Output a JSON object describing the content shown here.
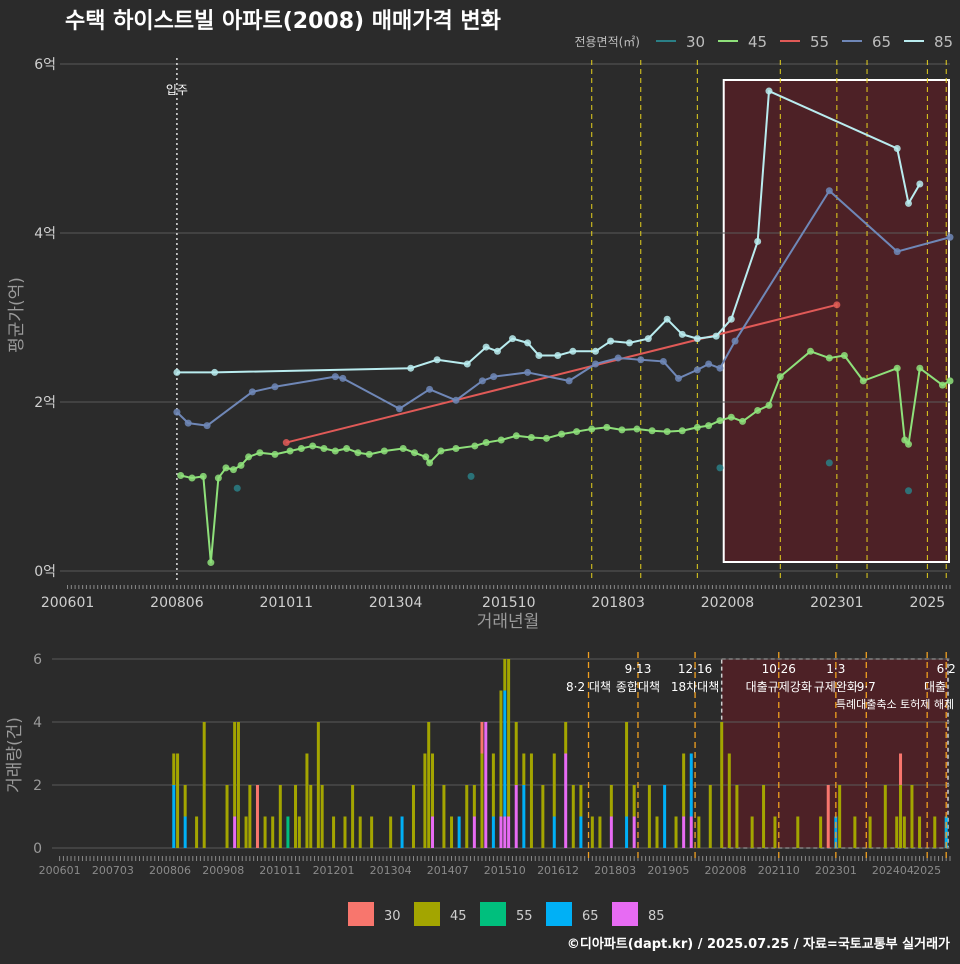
{
  "title": "수택 하이스트빌 아파트(2008) 매매가격 변화",
  "footer": "©디아파트(dapt.kr) / 2025.07.25 / 자료=국토교통부 실거래가",
  "colors": {
    "background": "#2b2b2b",
    "grid": "#5a5a5a",
    "text": "#cfcfcf",
    "event_line": "#e6d21e",
    "bar_event_line": "#f0a020",
    "highlight_fill": "#5a1f26",
    "s30": "#2a7f86",
    "s45": "#8ee07a",
    "s55": "#e05a57",
    "s65": "#6f87b7",
    "s85": "#b9ecef",
    "b30": "#f8766d",
    "b45": "#a3a500",
    "b55": "#00bf7d",
    "b65": "#00b0f6",
    "b85": "#e76bf3"
  },
  "chart_data": [
    {
      "type": "line",
      "xlabel": "거래년월",
      "ylabel": "평균가(억)",
      "x_ticks": [
        "200601",
        "200806",
        "201011",
        "201304",
        "201510",
        "201803",
        "202008",
        "202301",
        "2025"
      ],
      "y_ticks": [
        "0억",
        "2억",
        "4억",
        "6억"
      ],
      "ylim": [
        0,
        6
      ],
      "xlim": [
        "2005-11",
        "2025-07"
      ],
      "legend_title": "전용면적(㎡)",
      "legend_position": "top-right",
      "legend": [
        "30",
        "45",
        "55",
        "65",
        "85"
      ],
      "annotation": {
        "label": "입주",
        "x": "2008-06"
      },
      "event_dates": [
        "2017-08",
        "2018-09",
        "2019-12",
        "2021-10",
        "2023-01",
        "2023-09",
        "2025-01",
        "2025-06"
      ],
      "highlight": {
        "from": "2020-07",
        "to": "2025-07"
      },
      "series": [
        {
          "name": "30",
          "points": [
            [
              "2009-10",
              0.98
            ],
            [
              "2014-12",
              1.12
            ],
            [
              "2020-06",
              1.22
            ],
            [
              "2022-11",
              1.28
            ],
            [
              "2024-08",
              0.95
            ]
          ]
        },
        {
          "name": "45",
          "points": [
            [
              "2008-07",
              1.13
            ],
            [
              "2008-10",
              1.1
            ],
            [
              "2009-01",
              1.12
            ],
            [
              "2009-03",
              0.1
            ],
            [
              "2009-05",
              1.1
            ],
            [
              "2009-07",
              1.22
            ],
            [
              "2009-09",
              1.2
            ],
            [
              "2009-11",
              1.25
            ],
            [
              "2010-01",
              1.35
            ],
            [
              "2010-04",
              1.4
            ],
            [
              "2010-08",
              1.38
            ],
            [
              "2010-12",
              1.42
            ],
            [
              "2011-03",
              1.45
            ],
            [
              "2011-06",
              1.48
            ],
            [
              "2011-09",
              1.45
            ],
            [
              "2011-12",
              1.42
            ],
            [
              "2012-03",
              1.45
            ],
            [
              "2012-06",
              1.4
            ],
            [
              "2012-09",
              1.38
            ],
            [
              "2013-01",
              1.42
            ],
            [
              "2013-06",
              1.45
            ],
            [
              "2013-09",
              1.4
            ],
            [
              "2013-12",
              1.35
            ],
            [
              "2014-01",
              1.28
            ],
            [
              "2014-04",
              1.42
            ],
            [
              "2014-08",
              1.45
            ],
            [
              "2015-01",
              1.48
            ],
            [
              "2015-04",
              1.52
            ],
            [
              "2015-08",
              1.55
            ],
            [
              "2015-12",
              1.6
            ],
            [
              "2016-04",
              1.58
            ],
            [
              "2016-08",
              1.57
            ],
            [
              "2016-12",
              1.62
            ],
            [
              "2017-04",
              1.65
            ],
            [
              "2017-08",
              1.68
            ],
            [
              "2017-12",
              1.7
            ],
            [
              "2018-04",
              1.67
            ],
            [
              "2018-08",
              1.68
            ],
            [
              "2018-12",
              1.66
            ],
            [
              "2019-04",
              1.65
            ],
            [
              "2019-08",
              1.66
            ],
            [
              "2019-12",
              1.7
            ],
            [
              "2020-03",
              1.72
            ],
            [
              "2020-06",
              1.78
            ],
            [
              "2020-09",
              1.82
            ],
            [
              "2020-12",
              1.77
            ],
            [
              "2021-04",
              1.9
            ],
            [
              "2021-07",
              1.96
            ],
            [
              "2021-10",
              2.3
            ],
            [
              "2022-06",
              2.6
            ],
            [
              "2022-11",
              2.52
            ],
            [
              "2023-03",
              2.55
            ],
            [
              "2023-08",
              2.25
            ],
            [
              "2024-05",
              2.4
            ],
            [
              "2024-07",
              1.55
            ],
            [
              "2024-08",
              1.5
            ],
            [
              "2024-11",
              2.4
            ],
            [
              "2025-05",
              2.2
            ],
            [
              "2025-07",
              2.25
            ]
          ]
        },
        {
          "name": "55",
          "points": [
            [
              "2010-11",
              1.52
            ],
            [
              "2023-01",
              3.15
            ]
          ]
        },
        {
          "name": "65",
          "points": [
            [
              "2008-06",
              1.88
            ],
            [
              "2008-09",
              1.75
            ],
            [
              "2009-02",
              1.72
            ],
            [
              "2010-02",
              2.12
            ],
            [
              "2010-08",
              2.18
            ],
            [
              "2011-12",
              2.3
            ],
            [
              "2012-02",
              2.28
            ],
            [
              "2013-05",
              1.92
            ],
            [
              "2014-01",
              2.15
            ],
            [
              "2014-08",
              2.02
            ],
            [
              "2015-03",
              2.25
            ],
            [
              "2015-06",
              2.3
            ],
            [
              "2016-03",
              2.35
            ],
            [
              "2017-02",
              2.25
            ],
            [
              "2017-09",
              2.45
            ],
            [
              "2018-03",
              2.52
            ],
            [
              "2018-09",
              2.5
            ],
            [
              "2019-03",
              2.48
            ],
            [
              "2019-07",
              2.28
            ],
            [
              "2019-12",
              2.38
            ],
            [
              "2020-03",
              2.45
            ],
            [
              "2020-06",
              2.4
            ],
            [
              "2020-10",
              2.72
            ],
            [
              "2022-11",
              4.5
            ],
            [
              "2024-05",
              3.78
            ],
            [
              "2025-07",
              3.95
            ]
          ]
        },
        {
          "name": "85",
          "points": [
            [
              "2008-06",
              2.35
            ],
            [
              "2009-04",
              2.35
            ],
            [
              "2013-08",
              2.4
            ],
            [
              "2014-03",
              2.5
            ],
            [
              "2014-11",
              2.45
            ],
            [
              "2015-04",
              2.65
            ],
            [
              "2015-07",
              2.6
            ],
            [
              "2015-11",
              2.75
            ],
            [
              "2016-03",
              2.7
            ],
            [
              "2016-06",
              2.55
            ],
            [
              "2016-11",
              2.55
            ],
            [
              "2017-03",
              2.6
            ],
            [
              "2017-09",
              2.6
            ],
            [
              "2018-01",
              2.72
            ],
            [
              "2018-06",
              2.7
            ],
            [
              "2018-11",
              2.75
            ],
            [
              "2019-04",
              2.98
            ],
            [
              "2019-08",
              2.8
            ],
            [
              "2019-12",
              2.75
            ],
            [
              "2020-05",
              2.78
            ],
            [
              "2020-09",
              2.98
            ],
            [
              "2021-04",
              3.9
            ],
            [
              "2021-07",
              5.68
            ],
            [
              "2024-05",
              5.0
            ],
            [
              "2024-08",
              4.35
            ],
            [
              "2024-11",
              4.58
            ]
          ]
        }
      ]
    },
    {
      "type": "bar",
      "stacked": true,
      "ylabel": "거래량(건)",
      "ylim": [
        0,
        6
      ],
      "y_ticks": [
        "0",
        "2",
        "4",
        "6"
      ],
      "x_ticks": [
        "200601",
        "200703",
        "200806",
        "200908",
        "201011",
        "201201",
        "201304",
        "201407",
        "201510",
        "201612",
        "201803",
        "201905",
        "202008",
        "202110",
        "202301",
        "202404",
        "2025"
      ],
      "legend": [
        "30",
        "45",
        "55",
        "65",
        "85"
      ],
      "legend_position": "bottom",
      "events": [
        {
          "date": "2017-08",
          "line1": "",
          "line2": "8·2 대책"
        },
        {
          "date": "2018-09",
          "line1": "9·13",
          "line2": "종합대책"
        },
        {
          "date": "2019-12",
          "line1": "12·16",
          "line2": "18차대책"
        },
        {
          "date": "2021-10",
          "line1": "10·26",
          "line2": "대출규제강화"
        },
        {
          "date": "2023-01",
          "line1": "1·3",
          "line2": "규제완화"
        },
        {
          "date": "2023-09",
          "line1": "",
          "line2": "9·7"
        },
        {
          "date": "2025-01",
          "line1": "",
          "line2": ""
        },
        {
          "date": "2025-06",
          "line1": "6·2",
          "line2": "대출"
        }
      ],
      "event_extra_label": "특례대출축소 토허제 해제",
      "highlight": {
        "from": "2020-07",
        "to": "2025-07"
      },
      "bars": [
        {
          "date": "2008-07",
          "45": 1,
          "65": 2
        },
        {
          "date": "2008-08",
          "45": 3
        },
        {
          "date": "2008-10",
          "45": 1,
          "65": 1
        },
        {
          "date": "2009-01",
          "45": 1
        },
        {
          "date": "2009-03",
          "45": 4
        },
        {
          "date": "2009-09",
          "45": 2
        },
        {
          "date": "2009-11",
          "45": 3,
          "85": 1
        },
        {
          "date": "2009-12",
          "45": 4
        },
        {
          "date": "2010-02",
          "45": 1
        },
        {
          "date": "2010-03",
          "45": 2
        },
        {
          "date": "2010-05",
          "30": 2
        },
        {
          "date": "2010-07",
          "45": 1
        },
        {
          "date": "2010-09",
          "45": 1
        },
        {
          "date": "2010-11",
          "45": 2
        },
        {
          "date": "2011-01",
          "55": 1
        },
        {
          "date": "2011-03",
          "45": 2
        },
        {
          "date": "2011-04",
          "45": 1
        },
        {
          "date": "2011-06",
          "45": 3
        },
        {
          "date": "2011-07",
          "45": 2
        },
        {
          "date": "2011-09",
          "45": 4
        },
        {
          "date": "2011-10",
          "45": 2
        },
        {
          "date": "2012-01",
          "45": 1
        },
        {
          "date": "2012-04",
          "45": 1
        },
        {
          "date": "2012-06",
          "45": 2
        },
        {
          "date": "2012-08",
          "45": 1
        },
        {
          "date": "2012-11",
          "45": 1
        },
        {
          "date": "2013-04",
          "45": 1
        },
        {
          "date": "2013-07",
          "65": 1
        },
        {
          "date": "2013-10",
          "45": 2
        },
        {
          "date": "2014-01",
          "45": 3
        },
        {
          "date": "2014-02",
          "45": 4
        },
        {
          "date": "2014-03",
          "45": 2,
          "85": 1
        },
        {
          "date": "2014-06",
          "45": 2
        },
        {
          "date": "2014-08",
          "45": 1
        },
        {
          "date": "2014-10",
          "65": 1
        },
        {
          "date": "2014-12",
          "45": 2
        },
        {
          "date": "2015-02",
          "45": 1,
          "85": 1
        },
        {
          "date": "2015-04",
          "45": 3,
          "30": 1
        },
        {
          "date": "2015-05",
          "85": 4
        },
        {
          "date": "2015-07",
          "45": 2,
          "65": 1
        },
        {
          "date": "2015-09",
          "45": 4,
          "85": 1
        },
        {
          "date": "2015-10",
          "45": 1,
          "65": 4,
          "85": 1
        },
        {
          "date": "2015-11",
          "45": 5,
          "85": 1
        },
        {
          "date": "2016-01",
          "45": 2,
          "85": 2
        },
        {
          "date": "2016-03",
          "45": 1,
          "65": 2
        },
        {
          "date": "2016-05",
          "45": 3
        },
        {
          "date": "2016-08",
          "45": 2
        },
        {
          "date": "2016-11",
          "45": 2,
          "65": 1
        },
        {
          "date": "2017-02",
          "45": 1,
          "85": 3
        },
        {
          "date": "2017-04",
          "45": 2
        },
        {
          "date": "2017-06",
          "45": 1,
          "65": 1
        },
        {
          "date": "2017-09",
          "45": 1
        },
        {
          "date": "2017-11",
          "45": 1
        },
        {
          "date": "2018-02",
          "45": 1,
          "85": 1
        },
        {
          "date": "2018-06",
          "45": 3,
          "65": 1
        },
        {
          "date": "2018-08",
          "45": 1,
          "85": 1
        },
        {
          "date": "2018-12",
          "45": 2
        },
        {
          "date": "2019-02",
          "45": 1
        },
        {
          "date": "2019-04",
          "65": 2
        },
        {
          "date": "2019-07",
          "45": 1
        },
        {
          "date": "2019-09",
          "45": 2,
          "85": 1
        },
        {
          "date": "2019-11",
          "65": 2,
          "85": 1
        },
        {
          "date": "2020-01",
          "45": 1
        },
        {
          "date": "2020-04",
          "45": 2
        },
        {
          "date": "2020-07",
          "45": 4
        },
        {
          "date": "2020-09",
          "45": 3
        },
        {
          "date": "2020-11",
          "45": 2
        },
        {
          "date": "2021-03",
          "45": 1
        },
        {
          "date": "2021-06",
          "45": 2
        },
        {
          "date": "2021-09",
          "45": 1
        },
        {
          "date": "2022-03",
          "45": 1
        },
        {
          "date": "2022-09",
          "45": 1
        },
        {
          "date": "2022-11",
          "30": 2
        },
        {
          "date": "2023-01",
          "65": 1
        },
        {
          "date": "2023-02",
          "45": 2
        },
        {
          "date": "2023-06",
          "45": 1
        },
        {
          "date": "2023-10",
          "45": 1
        },
        {
          "date": "2024-02",
          "45": 2
        },
        {
          "date": "2024-05",
          "45": 1
        },
        {
          "date": "2024-06",
          "45": 2,
          "30": 1
        },
        {
          "date": "2024-07",
          "45": 1
        },
        {
          "date": "2024-09",
          "45": 2
        },
        {
          "date": "2024-11",
          "45": 1
        },
        {
          "date": "2025-03",
          "45": 1
        },
        {
          "date": "2025-06",
          "65": 1
        }
      ]
    }
  ]
}
